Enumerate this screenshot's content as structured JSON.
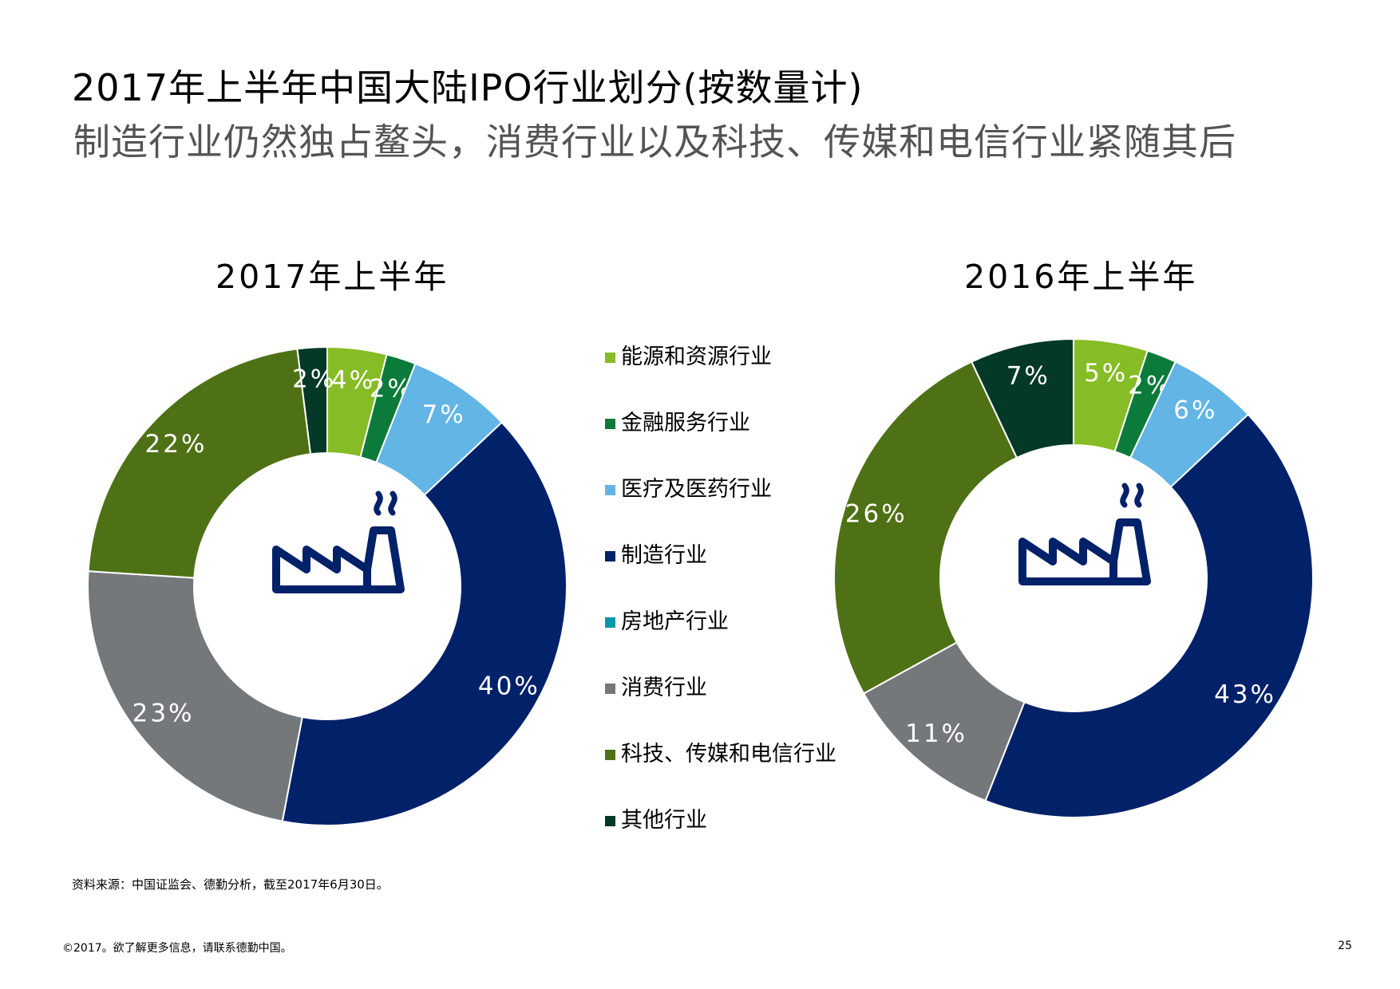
{
  "title": "2017年上半年中国大陆IPO行业划分(按数量计)",
  "subtitle": "制造行业仍然独占鳌头，消费行业以及科技、传媒和电信行业紧随其后",
  "chart_data": [
    {
      "type": "pie",
      "variant": "donut",
      "title": "2017年上半年",
      "series": [
        {
          "name": "能源和资源行业",
          "value": 4,
          "label": "4%",
          "color": "#86bc25"
        },
        {
          "name": "金融服务行业",
          "value": 2,
          "label": "2%",
          "color": "#0c7a3a"
        },
        {
          "name": "医疗及医药行业",
          "value": 7,
          "label": "7%",
          "color": "#62b5e5"
        },
        {
          "name": "制造行业",
          "value": 40,
          "label": "40%",
          "color": "#012169"
        },
        {
          "name": "房地产行业",
          "value": 0,
          "label": "",
          "color": "#0097a9"
        },
        {
          "name": "消费行业",
          "value": 23,
          "label": "23%",
          "color": "#75787b"
        },
        {
          "name": "科技、传媒和电信行业",
          "value": 22,
          "label": "22%",
          "color": "#4f7116"
        },
        {
          "name": "其他行业",
          "value": 2,
          "label": "2%",
          "color": "#043927"
        }
      ]
    },
    {
      "type": "pie",
      "variant": "donut",
      "title": "2016年上半年",
      "series": [
        {
          "name": "能源和资源行业",
          "value": 5,
          "label": "5%",
          "color": "#86bc25"
        },
        {
          "name": "金融服务行业",
          "value": 2,
          "label": "2%",
          "color": "#0c7a3a"
        },
        {
          "name": "医疗及医药行业",
          "value": 6,
          "label": "6%",
          "color": "#62b5e5"
        },
        {
          "name": "制造行业",
          "value": 43,
          "label": "43%",
          "color": "#012169"
        },
        {
          "name": "房地产行业",
          "value": 0,
          "label": "",
          "color": "#0097a9"
        },
        {
          "name": "消费行业",
          "value": 11,
          "label": "11%",
          "color": "#75787b"
        },
        {
          "name": "科技、传媒和电信行业",
          "value": 26,
          "label": "26%",
          "color": "#4f7116"
        },
        {
          "name": "其他行业",
          "value": 7,
          "label": "7%",
          "color": "#043927"
        }
      ]
    }
  ],
  "legend": [
    {
      "label": "能源和资源行业",
      "color": "#86bc25"
    },
    {
      "label": "金融服务行业",
      "color": "#0c7a3a"
    },
    {
      "label": "医疗及医药行业",
      "color": "#62b5e5"
    },
    {
      "label": "制造行业",
      "color": "#012169"
    },
    {
      "label": "房地产行业",
      "color": "#0097a9"
    },
    {
      "label": "消费行业",
      "color": "#75787b"
    },
    {
      "label": "科技、传媒和电信行业",
      "color": "#4f7116"
    },
    {
      "label": "其他行业",
      "color": "#043927"
    }
  ],
  "center_icon": "factory-icon",
  "source": "资料来源：中国证监会、德勤分析，截至2017年6月30日。",
  "footer": "©2017。欲了解更多信息，请联系德勤中国。",
  "page_number": "25"
}
